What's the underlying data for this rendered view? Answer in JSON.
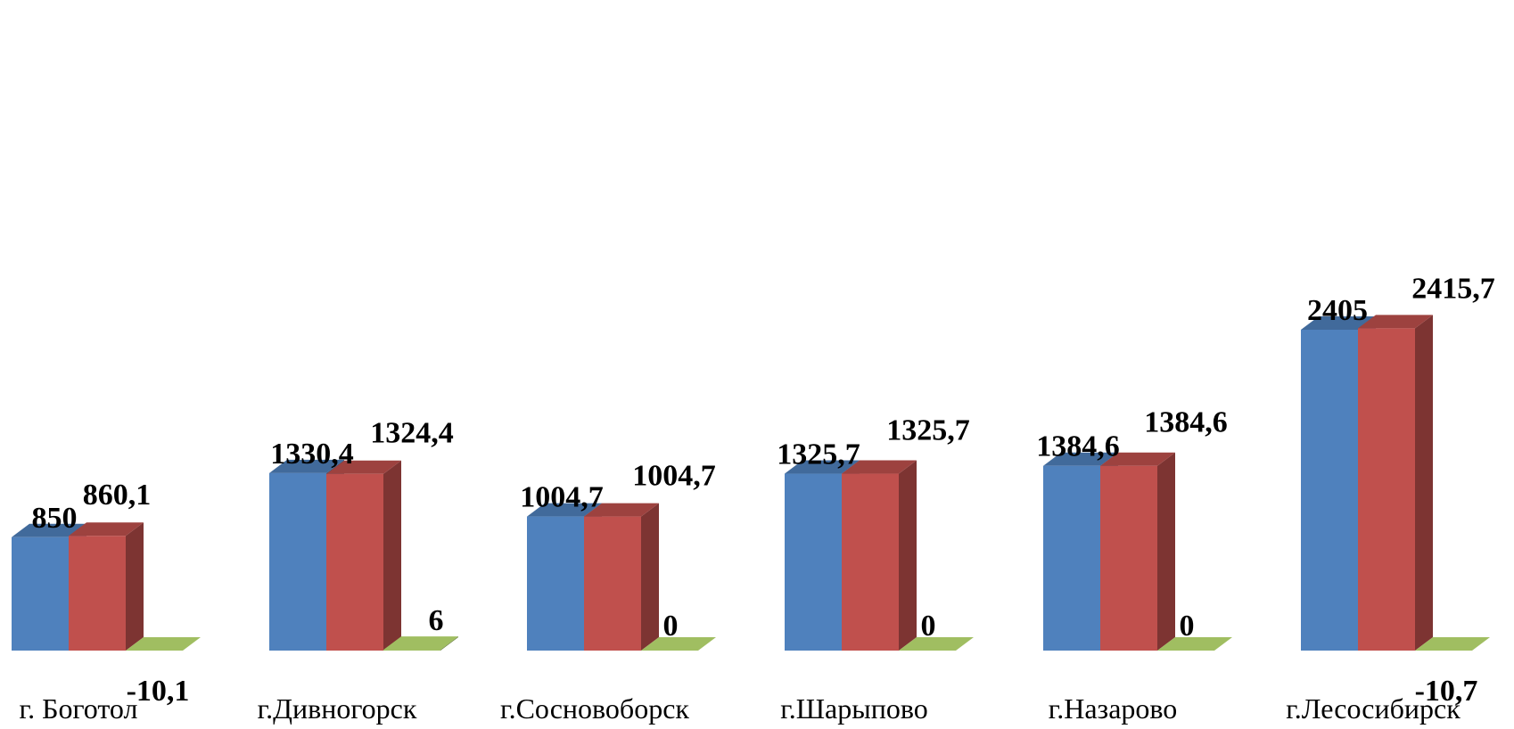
{
  "chart_data": {
    "type": "bar",
    "categories": [
      "г. Боготол",
      "г.Дивногорск",
      "г.Сосновоборск",
      "г.Шарыпово",
      "г.Назарово",
      "г.Лесосибирск"
    ],
    "series": [
      {
        "color": "#4F81BD",
        "values": [
          850,
          1330.4,
          1004.7,
          1325.7,
          1384.6,
          2405
        ]
      },
      {
        "color": "#C0504D",
        "values": [
          860.1,
          1324.4,
          1004.7,
          1325.7,
          1384.6,
          2415.7
        ]
      },
      {
        "color": "#9BBB59",
        "values": [
          -10.1,
          6,
          0,
          0,
          0,
          -10.7
        ]
      }
    ],
    "data_labels": [
      [
        "850",
        "1330,4",
        "1004,7",
        "1325,7",
        "1384,6",
        "2405"
      ],
      [
        "860,1",
        "1324,4",
        "1004,7",
        "1325,7",
        "1384,6",
        "2415,7"
      ],
      [
        "-10,1",
        "6",
        "0",
        "0",
        "0",
        "-10,7"
      ]
    ],
    "style": "3d-clustered-column",
    "axes_visible": false,
    "grid": false,
    "legend": "none"
  }
}
